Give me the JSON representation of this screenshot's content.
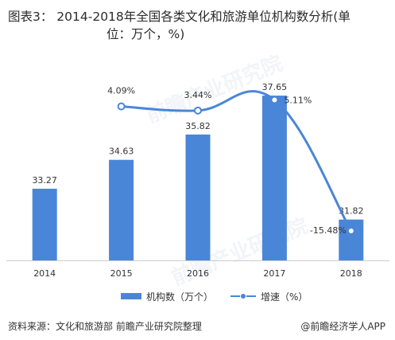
{
  "title": {
    "line1": "图表3： 2014-2018年全国各类文化和旅游单位机构数分析(单",
    "line2": "位：万个，%)"
  },
  "colors": {
    "bar": "#4a86d8",
    "line": "#4a86d8",
    "axis": "#cccccc"
  },
  "chart_data": {
    "type": "bar",
    "categories": [
      "2014",
      "2015",
      "2016",
      "2017",
      "2018"
    ],
    "series": [
      {
        "name": "机构数（万个）",
        "type": "bar",
        "values": [
          33.27,
          34.63,
          35.82,
          37.65,
          31.82
        ],
        "labels": [
          "33.27",
          "34.63",
          "35.82",
          "37.65",
          "31.82"
        ]
      },
      {
        "name": "增速（%）",
        "type": "line",
        "values": [
          null,
          4.09,
          3.44,
          5.11,
          -15.48
        ],
        "labels": [
          "",
          "4.09%",
          "3.44%",
          "5.11%",
          "-15.48%"
        ]
      }
    ],
    "legend_position": "bottom"
  },
  "legend": {
    "bar_label": "机构数（万个）",
    "line_label": "增速（%）"
  },
  "watermarks": [
    "前瞻产业研究院",
    "前瞻产业研究院"
  ],
  "footer": {
    "source": "资料来源：文化和旅游部 前瞻产业研究院整理",
    "brand": "@前瞻经济学人APP"
  }
}
